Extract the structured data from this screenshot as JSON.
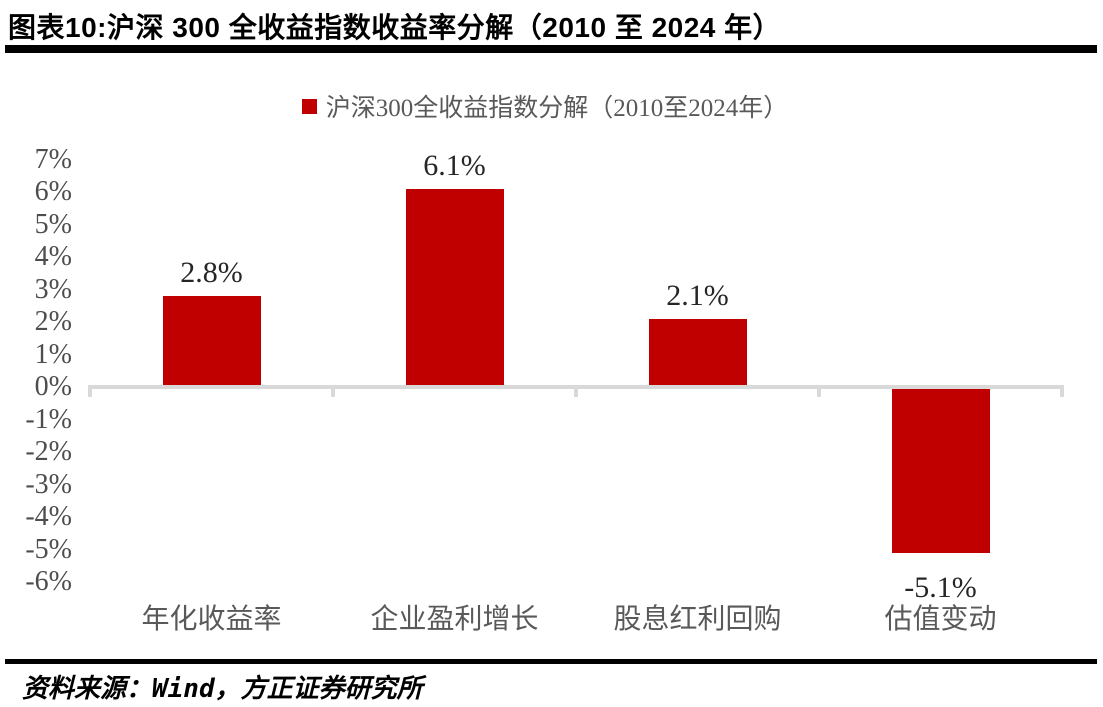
{
  "figure": {
    "title": "图表10:沪深 300 全收益指数收益率分解（2010 至 2024 年）",
    "source": "资料来源：Wind，方正证券研究所"
  },
  "chart_data": {
    "type": "bar",
    "title": "沪深300全收益指数分解（2010至2024年）",
    "categories": [
      "年化收益率",
      "企业盈利增长",
      "股息红利回购",
      "估值变动"
    ],
    "values": [
      2.8,
      6.1,
      2.1,
      -5.1
    ],
    "data_labels": [
      "2.8%",
      "6.1%",
      "2.1%",
      "-5.1%"
    ],
    "yticks": [
      "7%",
      "6%",
      "5%",
      "4%",
      "3%",
      "2%",
      "1%",
      "0%",
      "-1%",
      "-2%",
      "-3%",
      "-4%",
      "-5%",
      "-6%"
    ],
    "ylim": [
      -6,
      7
    ],
    "grid": false,
    "legend_position": "top-center",
    "colors": {
      "bar": "#c00000",
      "axis": "#d9d9d9",
      "value_label": "#262626",
      "ytick_label": "#4d4d4d",
      "category_label": "#595959",
      "title": "#000000"
    }
  }
}
